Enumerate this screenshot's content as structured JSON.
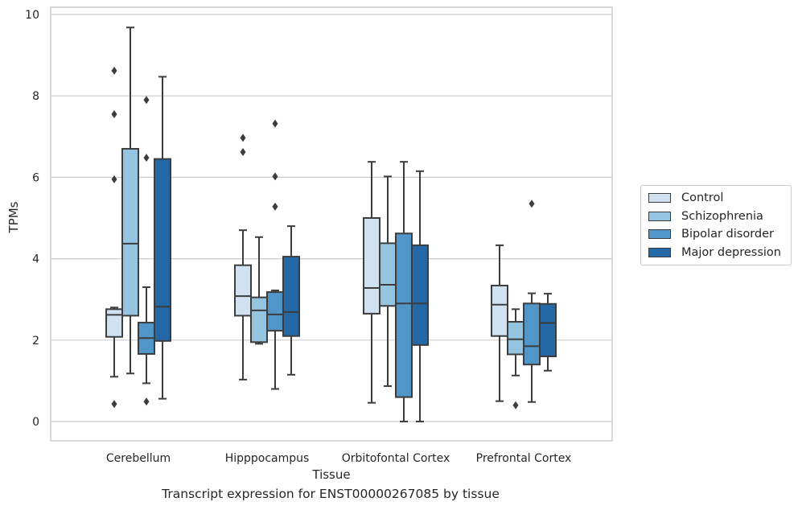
{
  "chart_data": {
    "type": "box",
    "title": "",
    "caption": "Transcript expression for ENST00000267085 by tissue",
    "xlabel": "Tissue",
    "ylabel": "TPMs",
    "ylim": [
      -0.45,
      10.2
    ],
    "yticks": [
      "0",
      "2",
      "4",
      "6",
      "8",
      "10"
    ],
    "grid": "horizontal",
    "legend_position": "right",
    "categories": [
      "Cerebellum",
      "Hipppocampus",
      "Orbitofontal Cortex",
      "Prefrontal Cortex"
    ],
    "series": [
      {
        "name": "Control",
        "color": "#d0e1f2",
        "boxes": [
          {
            "whislo": 1.1,
            "q1": 2.08,
            "med": 2.62,
            "q3": 2.76,
            "whishi": 2.8,
            "fliers": [
              0.43,
              5.95,
              7.55,
              8.62
            ]
          },
          {
            "whislo": 1.03,
            "q1": 2.6,
            "med": 3.08,
            "q3": 3.84,
            "whishi": 4.7,
            "fliers": [
              6.62,
              6.97
            ]
          },
          {
            "whislo": 0.46,
            "q1": 2.65,
            "med": 3.28,
            "q3": 5.0,
            "whishi": 6.38,
            "fliers": []
          },
          {
            "whislo": 0.5,
            "q1": 2.1,
            "med": 2.87,
            "q3": 3.34,
            "whishi": 4.33,
            "fliers": []
          }
        ]
      },
      {
        "name": "Schizophrenia",
        "color": "#94c4df",
        "boxes": [
          {
            "whislo": 1.18,
            "q1": 2.6,
            "med": 4.37,
            "q3": 6.7,
            "whishi": 9.68,
            "fliers": []
          },
          {
            "whislo": 1.91,
            "q1": 1.95,
            "med": 2.73,
            "q3": 3.05,
            "whishi": 4.53,
            "fliers": []
          },
          {
            "whislo": 0.87,
            "q1": 2.84,
            "med": 3.36,
            "q3": 4.38,
            "whishi": 6.02,
            "fliers": []
          },
          {
            "whislo": 1.13,
            "q1": 1.65,
            "med": 2.02,
            "q3": 2.45,
            "whishi": 2.76,
            "fliers": [
              0.4
            ]
          }
        ]
      },
      {
        "name": "Bipolar disorder",
        "color": "#5096c8",
        "boxes": [
          {
            "whislo": 0.94,
            "q1": 1.66,
            "med": 2.05,
            "q3": 2.43,
            "whishi": 3.3,
            "fliers": [
              0.49,
              6.48,
              7.9
            ]
          },
          {
            "whislo": 0.8,
            "q1": 2.23,
            "med": 2.63,
            "q3": 3.18,
            "whishi": 3.22,
            "fliers": [
              5.28,
              6.02,
              7.32
            ]
          },
          {
            "whislo": 0.0,
            "q1": 0.6,
            "med": 2.9,
            "q3": 4.62,
            "whishi": 6.38,
            "fliers": []
          },
          {
            "whislo": 0.48,
            "q1": 1.4,
            "med": 1.85,
            "q3": 2.9,
            "whishi": 3.15,
            "fliers": [
              5.35
            ]
          }
        ]
      },
      {
        "name": "Major depression",
        "color": "#2468a8",
        "boxes": [
          {
            "whislo": 0.56,
            "q1": 1.98,
            "med": 2.82,
            "q3": 6.45,
            "whishi": 8.47,
            "fliers": []
          },
          {
            "whislo": 1.15,
            "q1": 2.1,
            "med": 2.69,
            "q3": 4.05,
            "whishi": 4.8,
            "fliers": []
          },
          {
            "whislo": 0.0,
            "q1": 1.88,
            "med": 2.9,
            "q3": 4.33,
            "whishi": 6.15,
            "fliers": []
          },
          {
            "whislo": 1.25,
            "q1": 1.6,
            "med": 2.42,
            "q3": 2.89,
            "whishi": 3.14,
            "fliers": []
          }
        ]
      }
    ]
  }
}
